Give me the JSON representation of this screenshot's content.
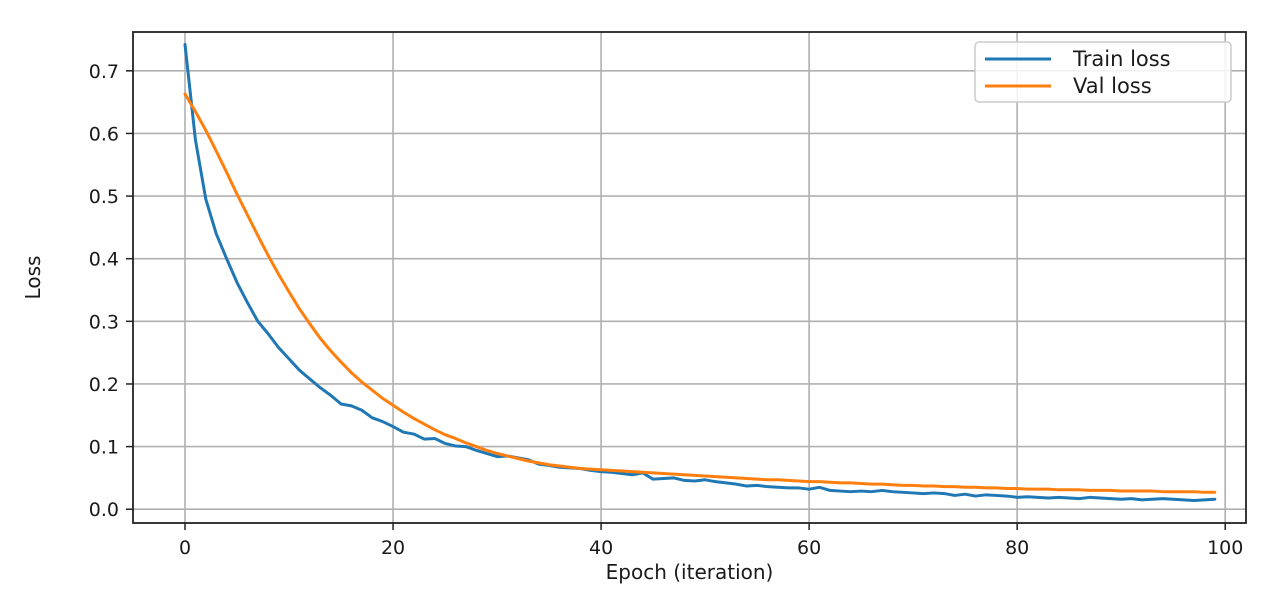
{
  "chart_data": {
    "type": "line",
    "xlabel": "Epoch (iteration)",
    "ylabel": "Loss",
    "xlim": [
      -5,
      102
    ],
    "ylim": [
      -0.022,
      0.762
    ],
    "xticks": [
      0,
      20,
      40,
      60,
      80,
      100
    ],
    "yticks": [
      0.0,
      0.1,
      0.2,
      0.3,
      0.4,
      0.5,
      0.6,
      0.7
    ],
    "xtick_labels": [
      "0",
      "20",
      "40",
      "60",
      "80",
      "100"
    ],
    "ytick_labels": [
      "0.0",
      "0.1",
      "0.2",
      "0.3",
      "0.4",
      "0.5",
      "0.6",
      "0.7"
    ],
    "grid": true,
    "legend_position": "top-right",
    "series": [
      {
        "name": "Train loss",
        "color": "#1f77b4",
        "x": [
          0,
          1,
          2,
          3,
          4,
          5,
          6,
          7,
          8,
          9,
          10,
          11,
          12,
          13,
          14,
          15,
          16,
          17,
          18,
          19,
          20,
          21,
          22,
          23,
          24,
          25,
          26,
          27,
          28,
          29,
          30,
          31,
          32,
          33,
          34,
          35,
          36,
          37,
          38,
          39,
          40,
          41,
          42,
          43,
          44,
          45,
          46,
          47,
          48,
          49,
          50,
          51,
          52,
          53,
          54,
          55,
          56,
          57,
          58,
          59,
          60,
          61,
          62,
          63,
          64,
          65,
          66,
          67,
          68,
          69,
          70,
          71,
          72,
          73,
          74,
          75,
          76,
          77,
          78,
          79,
          80,
          81,
          82,
          83,
          84,
          85,
          86,
          87,
          88,
          89,
          90,
          91,
          92,
          93,
          94,
          95,
          96,
          97,
          98,
          99
        ],
        "values": [
          0.742,
          0.59,
          0.495,
          0.44,
          0.4,
          0.362,
          0.33,
          0.3,
          0.28,
          0.258,
          0.24,
          0.222,
          0.208,
          0.194,
          0.182,
          0.168,
          0.165,
          0.158,
          0.146,
          0.14,
          0.132,
          0.123,
          0.12,
          0.112,
          0.113,
          0.105,
          0.101,
          0.1,
          0.094,
          0.089,
          0.084,
          0.085,
          0.082,
          0.079,
          0.072,
          0.07,
          0.067,
          0.066,
          0.065,
          0.062,
          0.06,
          0.059,
          0.057,
          0.055,
          0.058,
          0.048,
          0.049,
          0.05,
          0.046,
          0.045,
          0.047,
          0.044,
          0.042,
          0.04,
          0.037,
          0.038,
          0.036,
          0.035,
          0.034,
          0.034,
          0.032,
          0.035,
          0.03,
          0.029,
          0.028,
          0.029,
          0.028,
          0.03,
          0.028,
          0.027,
          0.026,
          0.025,
          0.026,
          0.025,
          0.022,
          0.024,
          0.021,
          0.023,
          0.022,
          0.021,
          0.019,
          0.02,
          0.019,
          0.018,
          0.019,
          0.018,
          0.017,
          0.019,
          0.018,
          0.017,
          0.016,
          0.017,
          0.015,
          0.016,
          0.017,
          0.016,
          0.015,
          0.014,
          0.015,
          0.016
        ]
      },
      {
        "name": "Val loss",
        "color": "#ff7f0e",
        "x": [
          0,
          1,
          2,
          3,
          4,
          5,
          6,
          7,
          8,
          9,
          10,
          11,
          12,
          13,
          14,
          15,
          16,
          17,
          18,
          19,
          20,
          21,
          22,
          23,
          24,
          25,
          26,
          27,
          28,
          29,
          30,
          31,
          32,
          33,
          34,
          35,
          36,
          37,
          38,
          39,
          40,
          41,
          42,
          43,
          44,
          45,
          46,
          47,
          48,
          49,
          50,
          51,
          52,
          53,
          54,
          55,
          56,
          57,
          58,
          59,
          60,
          61,
          62,
          63,
          64,
          65,
          66,
          67,
          68,
          69,
          70,
          71,
          72,
          73,
          74,
          75,
          76,
          77,
          78,
          79,
          80,
          81,
          82,
          83,
          84,
          85,
          86,
          87,
          88,
          89,
          90,
          91,
          92,
          93,
          94,
          95,
          96,
          97,
          98,
          99
        ],
        "values": [
          0.663,
          0.635,
          0.605,
          0.572,
          0.538,
          0.503,
          0.47,
          0.437,
          0.405,
          0.375,
          0.347,
          0.32,
          0.296,
          0.273,
          0.253,
          0.235,
          0.218,
          0.203,
          0.19,
          0.177,
          0.166,
          0.155,
          0.145,
          0.136,
          0.127,
          0.119,
          0.113,
          0.106,
          0.1,
          0.094,
          0.089,
          0.085,
          0.081,
          0.077,
          0.074,
          0.071,
          0.069,
          0.067,
          0.065,
          0.064,
          0.063,
          0.062,
          0.061,
          0.06,
          0.059,
          0.058,
          0.057,
          0.056,
          0.055,
          0.054,
          0.053,
          0.052,
          0.051,
          0.05,
          0.049,
          0.048,
          0.047,
          0.047,
          0.046,
          0.045,
          0.044,
          0.044,
          0.043,
          0.042,
          0.042,
          0.041,
          0.04,
          0.04,
          0.039,
          0.038,
          0.038,
          0.037,
          0.037,
          0.036,
          0.036,
          0.035,
          0.035,
          0.034,
          0.034,
          0.033,
          0.033,
          0.032,
          0.032,
          0.032,
          0.031,
          0.031,
          0.031,
          0.03,
          0.03,
          0.03,
          0.029,
          0.029,
          0.029,
          0.029,
          0.028,
          0.028,
          0.028,
          0.028,
          0.027,
          0.027
        ]
      }
    ]
  }
}
